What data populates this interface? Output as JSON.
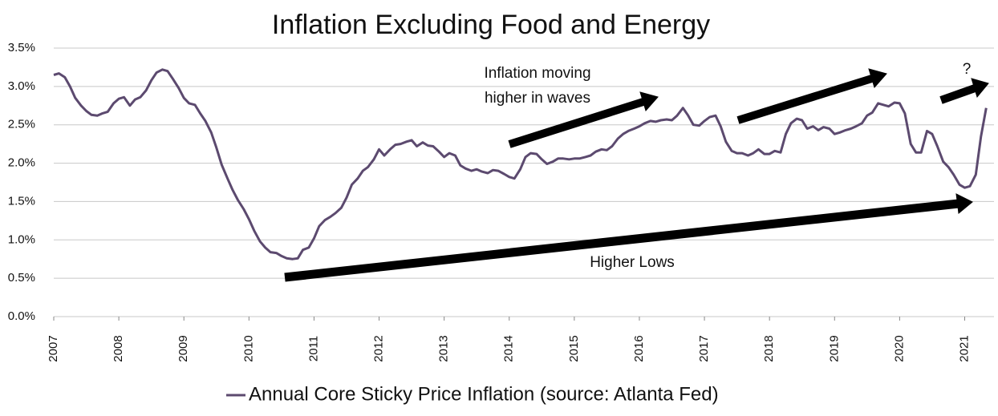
{
  "chart_data": {
    "type": "line",
    "title": "Inflation Excluding Food and Energy",
    "x": [
      2007,
      2007.08,
      2007.17,
      2007.25,
      2007.33,
      2007.42,
      2007.5,
      2007.58,
      2007.67,
      2007.75,
      2007.83,
      2007.92,
      2008,
      2008.08,
      2008.17,
      2008.25,
      2008.33,
      2008.42,
      2008.5,
      2008.58,
      2008.67,
      2008.75,
      2008.83,
      2008.92,
      2009,
      2009.08,
      2009.17,
      2009.25,
      2009.33,
      2009.42,
      2009.5,
      2009.58,
      2009.67,
      2009.75,
      2009.83,
      2009.92,
      2010,
      2010.08,
      2010.17,
      2010.25,
      2010.33,
      2010.42,
      2010.5,
      2010.58,
      2010.67,
      2010.75,
      2010.83,
      2010.92,
      2011,
      2011.08,
      2011.17,
      2011.25,
      2011.33,
      2011.42,
      2011.5,
      2011.58,
      2011.67,
      2011.75,
      2011.83,
      2011.92,
      2012,
      2012.08,
      2012.17,
      2012.25,
      2012.33,
      2012.42,
      2012.5,
      2012.58,
      2012.67,
      2012.75,
      2012.83,
      2012.92,
      2013,
      2013.08,
      2013.17,
      2013.25,
      2013.33,
      2013.42,
      2013.5,
      2013.58,
      2013.67,
      2013.75,
      2013.83,
      2013.92,
      2014,
      2014.08,
      2014.17,
      2014.25,
      2014.33,
      2014.42,
      2014.5,
      2014.58,
      2014.67,
      2014.75,
      2014.83,
      2014.92,
      2015,
      2015.08,
      2015.17,
      2015.25,
      2015.33,
      2015.42,
      2015.5,
      2015.58,
      2015.67,
      2015.75,
      2015.83,
      2015.92,
      2016,
      2016.08,
      2016.17,
      2016.25,
      2016.33,
      2016.42,
      2016.5,
      2016.58,
      2016.67,
      2016.75,
      2016.83,
      2016.92,
      2017,
      2017.08,
      2017.17,
      2017.25,
      2017.33,
      2017.42,
      2017.5,
      2017.58,
      2017.67,
      2017.75,
      2017.83,
      2017.92,
      2018,
      2018.08,
      2018.17,
      2018.25,
      2018.33,
      2018.42,
      2018.5,
      2018.58,
      2018.67,
      2018.75,
      2018.83,
      2018.92,
      2019,
      2019.08,
      2019.17,
      2019.25,
      2019.33,
      2019.42,
      2019.5,
      2019.58,
      2019.67,
      2019.75,
      2019.83,
      2019.92,
      2020,
      2020.08,
      2020.17,
      2020.25,
      2020.33,
      2020.42,
      2020.5,
      2020.58,
      2020.67,
      2020.75,
      2020.83,
      2020.92,
      2021,
      2021.08,
      2021.17,
      2021.25,
      2021.33
    ],
    "series": [
      {
        "name": "Annual Core Sticky Price Inflation (source: Atlanta Fed)",
        "color": "#5c4a6f",
        "values": [
          3.15,
          3.17,
          3.12,
          3.0,
          2.85,
          2.75,
          2.68,
          2.63,
          2.62,
          2.65,
          2.67,
          2.78,
          2.84,
          2.86,
          2.75,
          2.83,
          2.86,
          2.95,
          3.08,
          3.18,
          3.22,
          3.2,
          3.1,
          2.98,
          2.85,
          2.78,
          2.76,
          2.65,
          2.55,
          2.4,
          2.2,
          1.98,
          1.8,
          1.65,
          1.52,
          1.4,
          1.27,
          1.12,
          0.98,
          0.9,
          0.84,
          0.83,
          0.79,
          0.76,
          0.75,
          0.76,
          0.87,
          0.9,
          1.02,
          1.18,
          1.26,
          1.3,
          1.35,
          1.42,
          1.55,
          1.72,
          1.8,
          1.9,
          1.95,
          2.05,
          2.18,
          2.1,
          2.18,
          2.24,
          2.25,
          2.28,
          2.3,
          2.22,
          2.27,
          2.23,
          2.22,
          2.15,
          2.08,
          2.13,
          2.1,
          1.97,
          1.93,
          1.9,
          1.92,
          1.89,
          1.87,
          1.91,
          1.9,
          1.86,
          1.82,
          1.8,
          1.92,
          2.08,
          2.13,
          2.12,
          2.05,
          1.99,
          2.02,
          2.06,
          2.06,
          2.05,
          2.06,
          2.06,
          2.08,
          2.1,
          2.15,
          2.18,
          2.17,
          2.22,
          2.32,
          2.38,
          2.42,
          2.45,
          2.48,
          2.52,
          2.55,
          2.54,
          2.56,
          2.57,
          2.56,
          2.62,
          2.72,
          2.62,
          2.5,
          2.49,
          2.55,
          2.6,
          2.62,
          2.48,
          2.28,
          2.16,
          2.13,
          2.13,
          2.1,
          2.13,
          2.18,
          2.12,
          2.12,
          2.16,
          2.14,
          2.38,
          2.52,
          2.58,
          2.56,
          2.45,
          2.48,
          2.43,
          2.47,
          2.45,
          2.38,
          2.4,
          2.43,
          2.45,
          2.48,
          2.52,
          2.62,
          2.66,
          2.78,
          2.76,
          2.74,
          2.79,
          2.78,
          2.65,
          2.25,
          2.14,
          2.14,
          2.42,
          2.38,
          2.22,
          2.02,
          1.95,
          1.85,
          1.72,
          1.68,
          1.7,
          1.85,
          2.35,
          2.72
        ]
      }
    ],
    "xlim": [
      2007,
      2021.45
    ],
    "xticks": [
      2007,
      2008,
      2009,
      2010,
      2011,
      2012,
      2013,
      2014,
      2015,
      2016,
      2017,
      2018,
      2019,
      2020,
      2021
    ],
    "ylim": [
      0,
      3.5
    ],
    "yticks": [
      {
        "value": 0,
        "label": "0.0%"
      },
      {
        "value": 0.5,
        "label": "0.5%"
      },
      {
        "value": 1,
        "label": "1.0%"
      },
      {
        "value": 1.5,
        "label": "1.5%"
      },
      {
        "value": 2,
        "label": "2.0%"
      },
      {
        "value": 2.5,
        "label": "2.5%"
      },
      {
        "value": 3,
        "label": "3.0%"
      },
      {
        "value": 3.5,
        "label": "3.5%"
      }
    ],
    "grid": true,
    "legend": "bottom",
    "annotations": [
      [
        "Inflation moving",
        "higher in waves"
      ],
      [
        "Higher Lows"
      ],
      [
        "?"
      ]
    ]
  }
}
